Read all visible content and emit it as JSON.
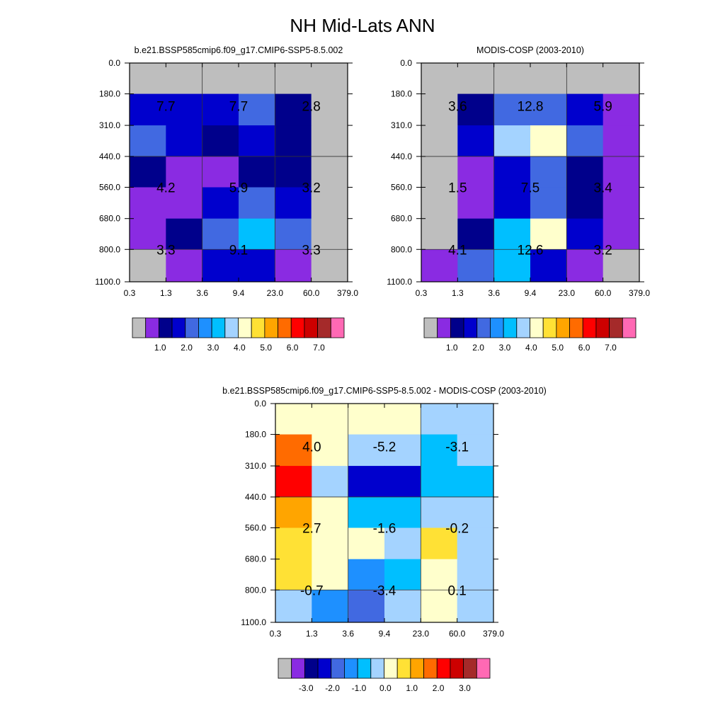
{
  "figure": {
    "title": "NH Mid-Lats ANN"
  },
  "chart_data": [
    {
      "type": "heatmap",
      "title": "b.e21.BSSP585cmip6.f09_g17.CMIP6-SSP5-8.5.002",
      "x_ticks": [
        "0.3",
        "1.3",
        "3.6",
        "9.4",
        "23.0",
        "60.0",
        "379.0"
      ],
      "y_ticks": [
        "0.0",
        "180.0",
        "310.0",
        "440.0",
        "560.0",
        "680.0",
        "800.0",
        "1100.0"
      ],
      "cell_colors": [
        [
          "#bebebe",
          "#bebebe",
          "#bebebe",
          "#bebebe",
          "#bebebe",
          "#bebebe"
        ],
        [
          "#0000cd",
          "#0000cd",
          "#0000cd",
          "#4169e1",
          "#00008b",
          "#bebebe"
        ],
        [
          "#4169e1",
          "#0000cd",
          "#00008b",
          "#0000cd",
          "#00008b",
          "#bebebe"
        ],
        [
          "#00008b",
          "#8a2be2",
          "#8a2be2",
          "#00008b",
          "#00008b",
          "#bebebe"
        ],
        [
          "#8a2be2",
          "#8a2be2",
          "#0000cd",
          "#4169e1",
          "#0000cd",
          "#bebebe"
        ],
        [
          "#8a2be2",
          "#00008b",
          "#4169e1",
          "#00bfff",
          "#4169e1",
          "#bebebe"
        ],
        [
          "#bebebe",
          "#8a2be2",
          "#0000cd",
          "#0000cd",
          "#8a2be2",
          "#bebebe"
        ]
      ],
      "labels": [
        {
          "row": 1,
          "col": 0,
          "text": "7.7"
        },
        {
          "row": 1,
          "col": 1,
          "text": "7.7"
        },
        {
          "row": 1,
          "col": 2,
          "text": "2.8"
        },
        {
          "row": 4,
          "col": 0,
          "text": "4.2"
        },
        {
          "row": 4,
          "col": 1,
          "text": "5.9"
        },
        {
          "row": 4,
          "col": 2,
          "text": "3.2"
        },
        {
          "row": 6,
          "col": 0,
          "text": "3.3"
        },
        {
          "row": 6,
          "col": 1,
          "text": "9.1"
        },
        {
          "row": 6,
          "col": 2,
          "text": "3.3"
        }
      ],
      "colorbar": {
        "colors": [
          "#bebebe",
          "#8a2be2",
          "#00008b",
          "#0000cd",
          "#4169e1",
          "#1e90ff",
          "#00bfff",
          "#a4d3ff",
          "#ffffcc",
          "#ffe135",
          "#ffa500",
          "#ff6b00",
          "#ff0000",
          "#cd0000",
          "#a52a2a",
          "#ff69b4"
        ],
        "tick_labels": [
          "1.0",
          "2.0",
          "3.0",
          "4.0",
          "5.0",
          "6.0",
          "7.0"
        ]
      }
    },
    {
      "type": "heatmap",
      "title": "MODIS-COSP (2003-2010)",
      "x_ticks": [
        "0.3",
        "1.3",
        "3.6",
        "9.4",
        "23.0",
        "60.0",
        "379.0"
      ],
      "y_ticks": [
        "0.0",
        "180.0",
        "310.0",
        "440.0",
        "560.0",
        "680.0",
        "800.0",
        "1100.0"
      ],
      "cell_colors": [
        [
          "#bebebe",
          "#bebebe",
          "#bebebe",
          "#bebebe",
          "#bebebe",
          "#bebebe"
        ],
        [
          "#bebebe",
          "#00008b",
          "#4169e1",
          "#4169e1",
          "#0000cd",
          "#8a2be2"
        ],
        [
          "#bebebe",
          "#0000cd",
          "#a4d3ff",
          "#ffffcc",
          "#4169e1",
          "#8a2be2"
        ],
        [
          "#bebebe",
          "#8a2be2",
          "#0000cd",
          "#4169e1",
          "#00008b",
          "#8a2be2"
        ],
        [
          "#bebebe",
          "#8a2be2",
          "#0000cd",
          "#4169e1",
          "#00008b",
          "#8a2be2"
        ],
        [
          "#bebebe",
          "#00008b",
          "#00bfff",
          "#ffffcc",
          "#0000cd",
          "#8a2be2"
        ],
        [
          "#8a2be2",
          "#4169e1",
          "#00bfff",
          "#0000cd",
          "#8a2be2",
          "#bebebe"
        ]
      ],
      "labels": [
        {
          "row": 1,
          "col": 0,
          "text": "3.6"
        },
        {
          "row": 1,
          "col": 1,
          "text": "12.8"
        },
        {
          "row": 1,
          "col": 2,
          "text": "5.9"
        },
        {
          "row": 4,
          "col": 0,
          "text": "1.5"
        },
        {
          "row": 4,
          "col": 1,
          "text": "7.5"
        },
        {
          "row": 4,
          "col": 2,
          "text": "3.4"
        },
        {
          "row": 6,
          "col": 0,
          "text": "4.1"
        },
        {
          "row": 6,
          "col": 1,
          "text": "12.6"
        },
        {
          "row": 6,
          "col": 2,
          "text": "3.2"
        }
      ],
      "colorbar": {
        "colors": [
          "#bebebe",
          "#8a2be2",
          "#00008b",
          "#0000cd",
          "#4169e1",
          "#1e90ff",
          "#00bfff",
          "#a4d3ff",
          "#ffffcc",
          "#ffe135",
          "#ffa500",
          "#ff6b00",
          "#ff0000",
          "#cd0000",
          "#a52a2a",
          "#ff69b4"
        ],
        "tick_labels": [
          "1.0",
          "2.0",
          "3.0",
          "4.0",
          "5.0",
          "6.0",
          "7.0"
        ]
      }
    },
    {
      "type": "heatmap",
      "title": "b.e21.BSSP585cmip6.f09_g17.CMIP6-SSP5-8.5.002 - MODIS-COSP (2003-2010)",
      "x_ticks": [
        "0.3",
        "1.3",
        "3.6",
        "9.4",
        "23.0",
        "60.0",
        "379.0"
      ],
      "y_ticks": [
        "0.0",
        "180.0",
        "310.0",
        "440.0",
        "560.0",
        "680.0",
        "800.0",
        "1100.0"
      ],
      "cell_colors": [
        [
          "#ffffcc",
          "#ffffcc",
          "#ffffcc",
          "#ffffcc",
          "#a4d3ff",
          "#a4d3ff"
        ],
        [
          "#ff6b00",
          "#ffffcc",
          "#a4d3ff",
          "#a4d3ff",
          "#00bfff",
          "#a4d3ff"
        ],
        [
          "#ff0000",
          "#a4d3ff",
          "#0000cd",
          "#0000cd",
          "#00bfff",
          "#00bfff"
        ],
        [
          "#ffa500",
          "#ffffcc",
          "#00bfff",
          "#00bfff",
          "#a4d3ff",
          "#a4d3ff"
        ],
        [
          "#ffe135",
          "#ffffcc",
          "#ffffcc",
          "#a4d3ff",
          "#ffe135",
          "#a4d3ff"
        ],
        [
          "#ffe135",
          "#ffffcc",
          "#1e90ff",
          "#00bfff",
          "#ffffcc",
          "#a4d3ff"
        ],
        [
          "#a4d3ff",
          "#1e90ff",
          "#4169e1",
          "#a4d3ff",
          "#ffffcc",
          "#a4d3ff"
        ]
      ],
      "labels": [
        {
          "row": 1,
          "col": 0,
          "text": "4.0"
        },
        {
          "row": 1,
          "col": 1,
          "text": "-5.2"
        },
        {
          "row": 1,
          "col": 2,
          "text": "-3.1"
        },
        {
          "row": 4,
          "col": 0,
          "text": "2.7"
        },
        {
          "row": 4,
          "col": 1,
          "text": "-1.6"
        },
        {
          "row": 4,
          "col": 2,
          "text": "-0.2"
        },
        {
          "row": 6,
          "col": 0,
          "text": "-0.7"
        },
        {
          "row": 6,
          "col": 1,
          "text": "-3.4"
        },
        {
          "row": 6,
          "col": 2,
          "text": "0.1"
        }
      ],
      "colorbar": {
        "colors": [
          "#bebebe",
          "#8a2be2",
          "#00008b",
          "#0000cd",
          "#4169e1",
          "#1e90ff",
          "#00bfff",
          "#a4d3ff",
          "#ffffcc",
          "#ffe135",
          "#ffa500",
          "#ff6b00",
          "#ff0000",
          "#cd0000",
          "#a52a2a",
          "#ff69b4"
        ],
        "tick_labels": [
          "-3.0",
          "-2.0",
          "-1.0",
          "0.0",
          "1.0",
          "2.0",
          "3.0"
        ]
      }
    }
  ]
}
